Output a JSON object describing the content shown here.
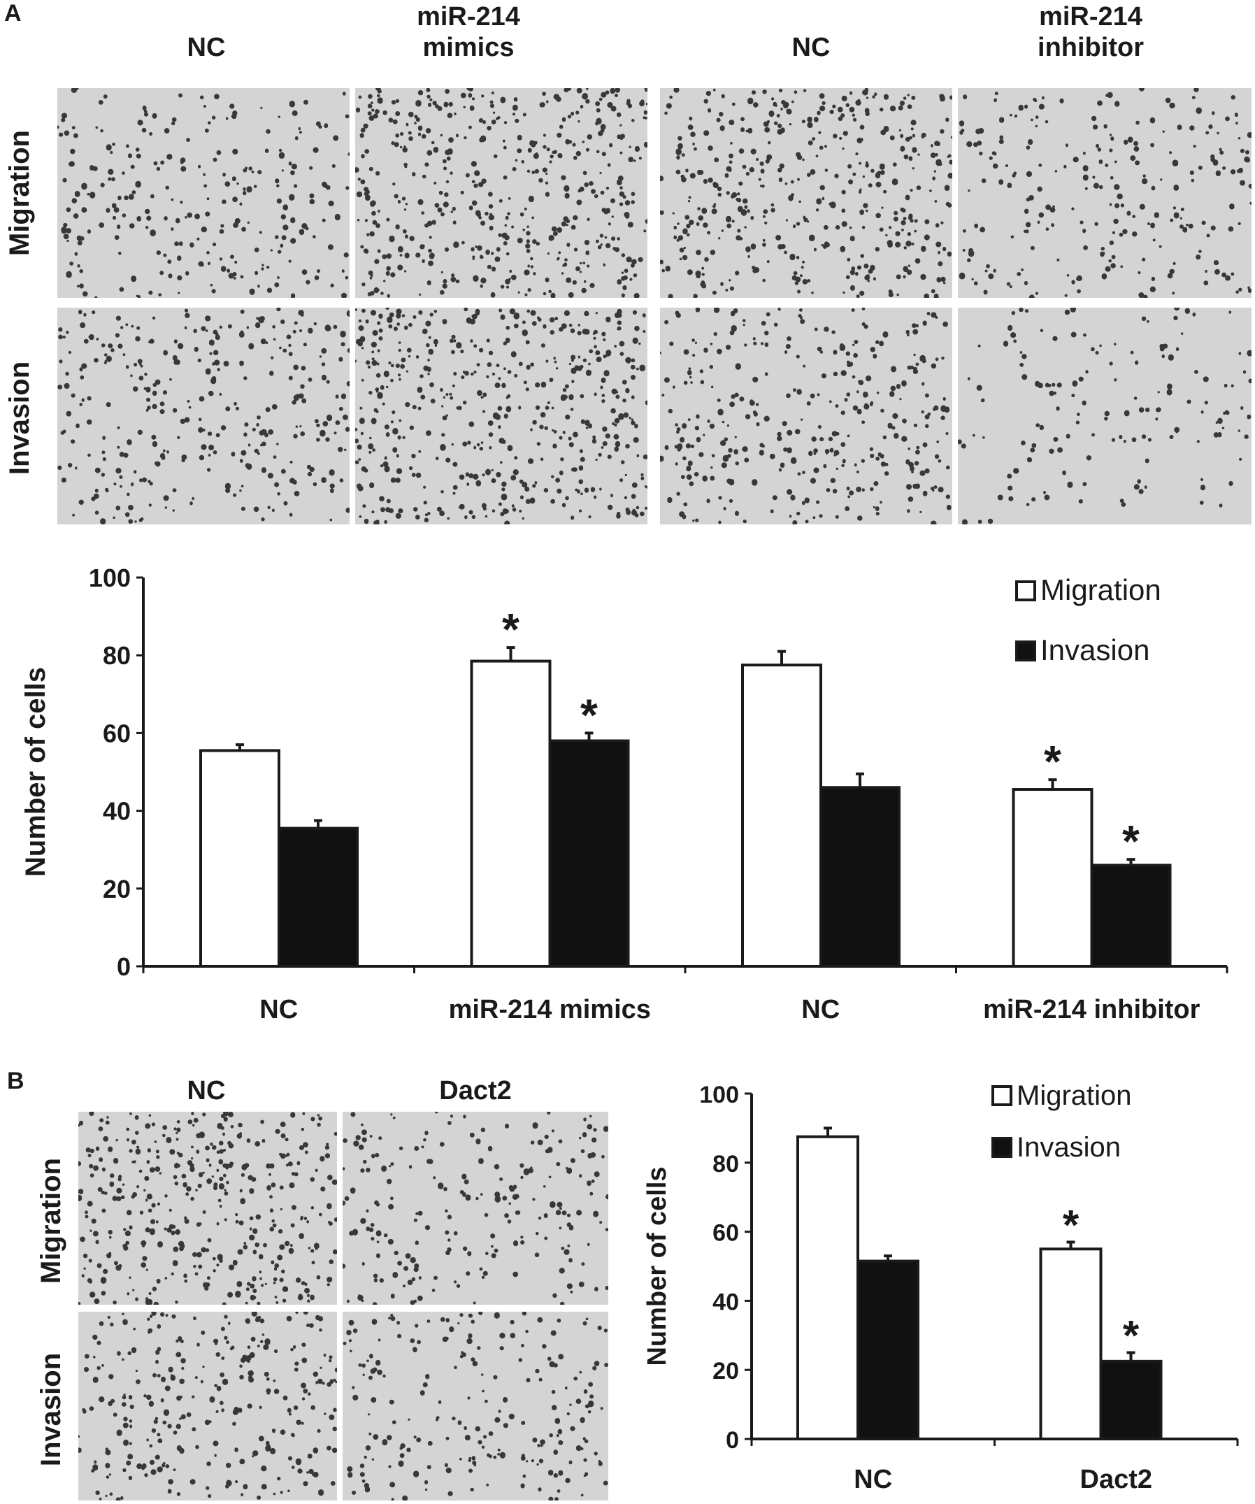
{
  "panelA": {
    "letter": "A",
    "column_labels": [
      "NC",
      "miR-214\nmimics",
      "NC",
      "miR-214\ninhibitor"
    ],
    "row_labels": [
      "Migration",
      "Invasion"
    ]
  },
  "panelB": {
    "letter": "B",
    "column_labels": [
      "NC",
      "Dact2"
    ],
    "row_labels": [
      "Migration",
      "Invasion"
    ]
  },
  "colors": {
    "migration": "#ffffff",
    "invasion": "#111111",
    "axis": "#1a1a1a",
    "micrograph_bg": "#d4d4d4",
    "cell": "#1c1c1c"
  },
  "chart_data": [
    {
      "type": "bar",
      "categories": [
        "NC",
        "miR-214 mimics",
        "NC",
        "miR-214 inhibitor"
      ],
      "series": [
        {
          "name": "Migration",
          "values": [
            55.5,
            78.5,
            77.5,
            45.5
          ],
          "errors": [
            1.5,
            3.5,
            3.5,
            2.5
          ],
          "significant": [
            false,
            true,
            false,
            true
          ]
        },
        {
          "name": "Invasion",
          "values": [
            35.5,
            58,
            46,
            26
          ],
          "errors": [
            2,
            2,
            3.5,
            1.5
          ],
          "significant": [
            false,
            true,
            false,
            true
          ]
        }
      ],
      "xlabel": "",
      "ylabel": "Number of cells",
      "ylim": [
        0,
        100
      ],
      "yticks": [
        "0",
        "20",
        "40",
        "60",
        "80",
        "100"
      ],
      "significance_marker": "*",
      "legend_position": "top-right"
    },
    {
      "type": "bar",
      "categories": [
        "NC",
        "Dact2"
      ],
      "series": [
        {
          "name": "Migration",
          "values": [
            87.5,
            55
          ],
          "errors": [
            2.5,
            2
          ],
          "significant": [
            false,
            true
          ]
        },
        {
          "name": "Invasion",
          "values": [
            51.5,
            22.5
          ],
          "errors": [
            1.5,
            2.5
          ],
          "significant": [
            false,
            true
          ]
        }
      ],
      "xlabel": "",
      "ylabel": "Number of cells",
      "ylim": [
        0,
        100
      ],
      "yticks": [
        "0",
        "20",
        "40",
        "60",
        "80",
        "100"
      ],
      "significance_marker": "*",
      "legend_position": "top-right"
    }
  ]
}
